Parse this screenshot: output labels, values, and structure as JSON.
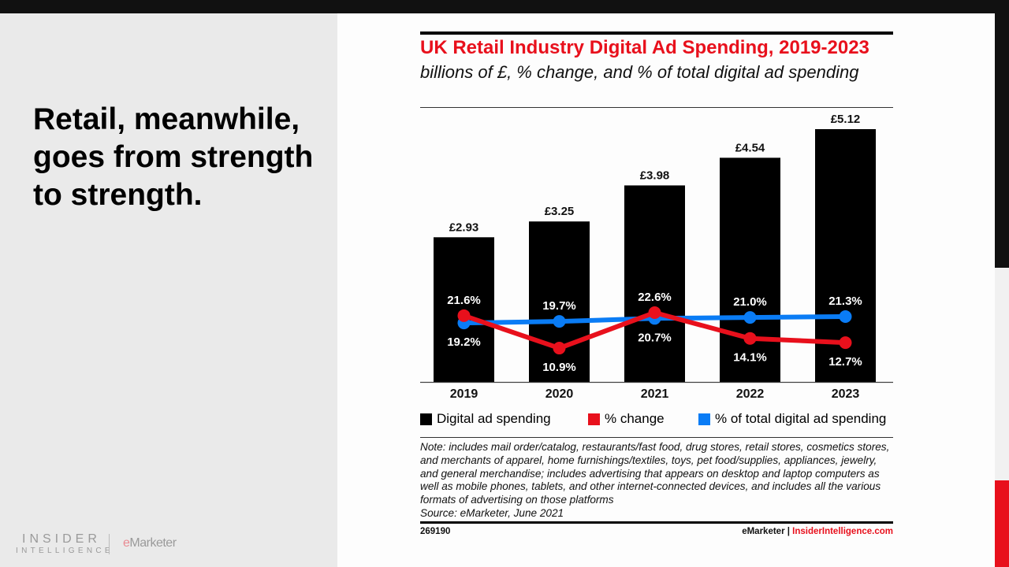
{
  "slide": {
    "headline": "Retail, meanwhile, goes from strength to strength.",
    "logo": {
      "line1": "INSIDER",
      "line2": "INTELLIGENCE",
      "emarketer_e": "e",
      "emarketer_rest": "Marketer"
    },
    "colors": {
      "accent_red": "#e8101c",
      "blue": "#0a7cf5",
      "black": "#000000"
    }
  },
  "chart_data": {
    "type": "bar",
    "title": "UK Retail Industry Digital Ad Spending, 2019-2023",
    "subtitle": "billions of £, % change, and % of total digital ad spending",
    "categories": [
      "2019",
      "2020",
      "2021",
      "2022",
      "2023"
    ],
    "series": [
      {
        "name": "Digital ad spending",
        "type": "bar",
        "color": "#000000",
        "values": [
          2.93,
          3.25,
          3.98,
          4.54,
          5.12
        ],
        "labels": [
          "£2.93",
          "£3.25",
          "£3.98",
          "£4.54",
          "£5.12"
        ]
      },
      {
        "name": "% change",
        "type": "line",
        "color": "#e8101c",
        "values": [
          21.6,
          10.9,
          22.6,
          14.1,
          12.7
        ],
        "labels": [
          "21.6%",
          "10.9%",
          "22.6%",
          "14.1%",
          "12.7%"
        ]
      },
      {
        "name": "% of total digital ad spending",
        "type": "line",
        "color": "#0a7cf5",
        "values": [
          19.2,
          19.7,
          20.7,
          21.0,
          21.3
        ],
        "labels": [
          "19.2%",
          "19.7%",
          "20.7%",
          "21.0%",
          "21.3%"
        ]
      }
    ],
    "xlabel": "",
    "ylabel": "",
    "grid": false,
    "legend_position": "bottom",
    "note": "Note: includes mail order/catalog, restaurants/fast food, drug stores, retail stores, cosmetics stores, and merchants of apparel, home furnishings/textiles, toys, pet food/supplies, appliances, jewelry, and general merchandise; includes advertising that appears on desktop and laptop computers as well as mobile phones, tablets, and other internet-connected devices, and includes all the various formats of advertising on those platforms",
    "source": "Source: eMarketer, June 2021",
    "chart_id": "269190",
    "footer_brand": "eMarketer",
    "footer_sep": "|",
    "footer_site": "InsiderIntelligence.com"
  }
}
